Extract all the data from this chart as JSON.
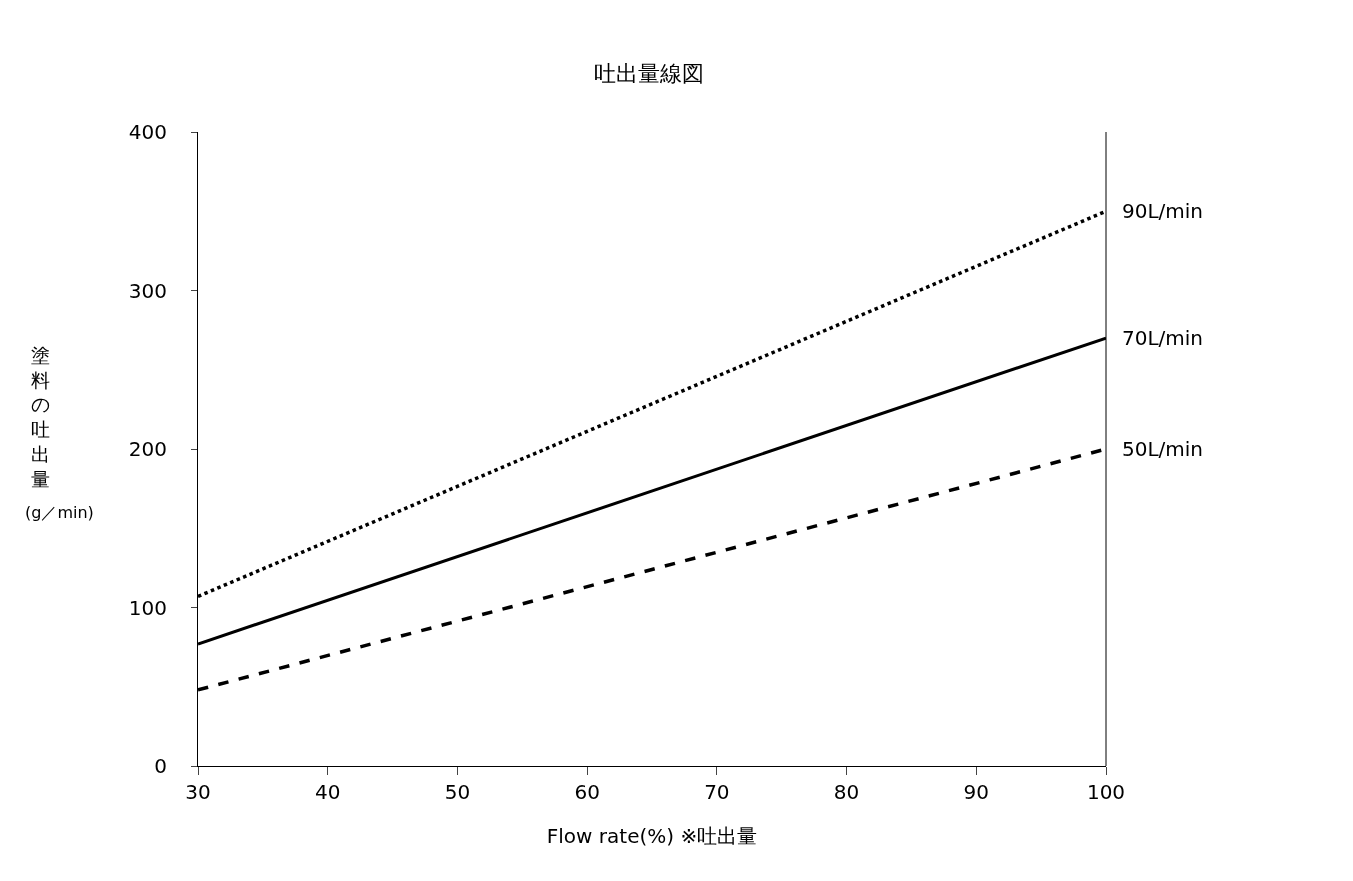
{
  "chart_data": {
    "type": "line",
    "title": "吐出量線図",
    "xlabel": "Flow rate(%) ※吐出量",
    "ylabel": "塗料の吐出量",
    "annotations": [
      "(g／min)"
    ],
    "x": [
      30,
      100
    ],
    "series": [
      {
        "name": "90L/min",
        "color": "#000000",
        "values": [
          107,
          350
        ],
        "line_style": "dotted"
      },
      {
        "name": "70L/min",
        "color": "#000000",
        "values": [
          77,
          270
        ],
        "line_style": "solid"
      },
      {
        "name": "50L/min",
        "color": "#000000",
        "values": [
          48,
          200
        ],
        "line_style": "dashed"
      }
    ],
    "xlim": [
      30,
      100
    ],
    "xticks": [
      30,
      40,
      50,
      60,
      70,
      80,
      90,
      100
    ],
    "ylim": [
      0,
      400
    ],
    "yticks": [
      0,
      100,
      200,
      300,
      400
    ],
    "legend": false
  }
}
